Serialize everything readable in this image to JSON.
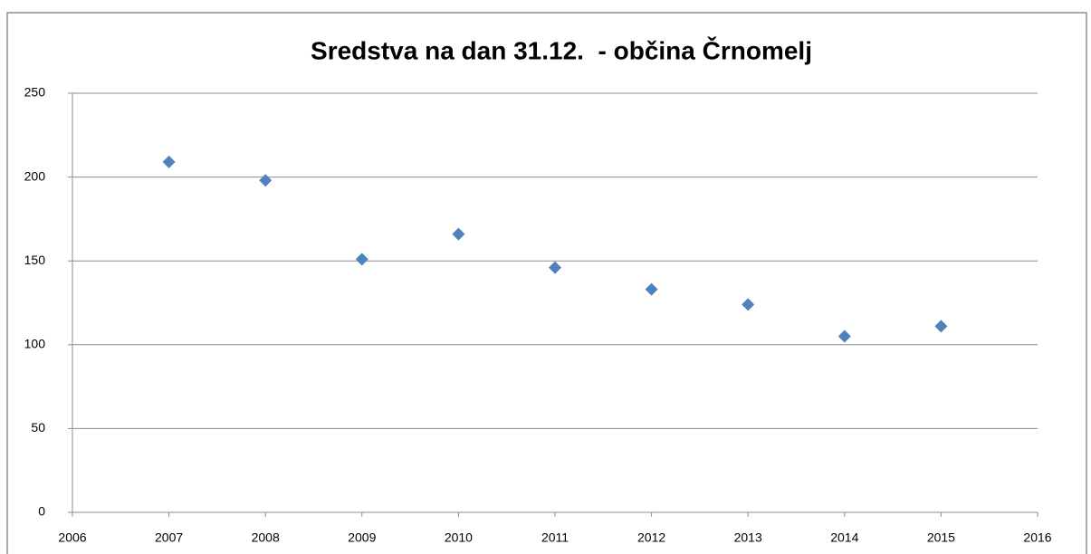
{
  "chart_data": {
    "type": "scatter",
    "title": "Sredstva na dan 31.12.  - občina Črnomelj",
    "x": [
      2007,
      2008,
      2009,
      2010,
      2011,
      2012,
      2013,
      2014,
      2015
    ],
    "values": [
      209,
      198,
      151,
      166,
      146,
      133,
      124,
      105,
      111
    ],
    "color": "#4f81bd",
    "xlim": [
      2006,
      2016
    ],
    "xticks": [
      2006,
      2007,
      2008,
      2009,
      2010,
      2011,
      2012,
      2013,
      2014,
      2015,
      2016
    ],
    "ylim": [
      0,
      250
    ],
    "yticks": [
      0,
      50,
      100,
      150,
      200,
      250
    ],
    "grid": true
  }
}
